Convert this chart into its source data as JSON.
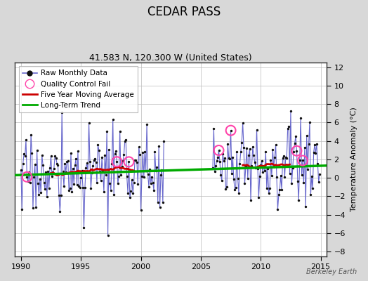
{
  "title": "CEDAR PASS",
  "subtitle": "41.583 N, 120.300 W (United States)",
  "ylabel": "Temperature Anomaly (°C)",
  "xlim": [
    1989.5,
    2015.5
  ],
  "ylim": [
    -8.5,
    12.5
  ],
  "yticks": [
    -8,
    -6,
    -4,
    -2,
    0,
    2,
    4,
    6,
    8,
    10,
    12
  ],
  "xticks": [
    1990,
    1995,
    2000,
    2005,
    2010,
    2015
  ],
  "background_color": "#d8d8d8",
  "plot_bg_color": "#ffffff",
  "raw_line_color": "#6666cc",
  "raw_dot_color": "#111111",
  "qc_fail_color": "#ff44aa",
  "moving_avg_color": "#cc0000",
  "trend_color": "#00aa00",
  "watermark": "Berkeley Earth",
  "seed": 17,
  "start_year_1": 1990,
  "end_year_1": 2001,
  "start_year_2": 2006,
  "end_year_2": 2014,
  "trend_slope": 0.04,
  "trend_intercept": 0.3
}
